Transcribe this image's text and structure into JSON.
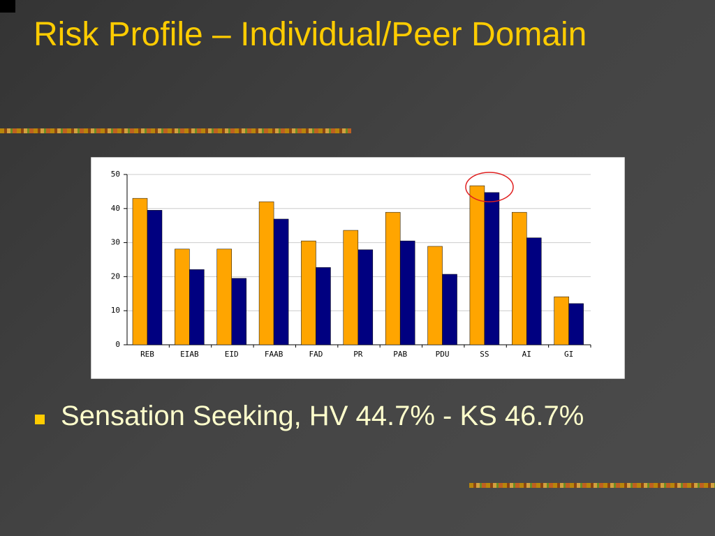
{
  "slide": {
    "title": "Risk Profile – Individual/Peer Domain",
    "bullet": "Sensation Seeking, HV 44.7% - KS 46.7%"
  },
  "chart_data": {
    "type": "bar",
    "categories": [
      "REB",
      "EIAB",
      "EID",
      "FAAB",
      "FAD",
      "PR",
      "PAB",
      "PDU",
      "SS",
      "AI",
      "GI"
    ],
    "series": [
      {
        "color": "#ffa500",
        "values": [
          43.0,
          28.1,
          28.1,
          42.0,
          30.5,
          33.6,
          38.9,
          28.9,
          46.7,
          38.9,
          14.1
        ]
      },
      {
        "color": "#000080",
        "values": [
          39.5,
          22.1,
          19.5,
          36.9,
          22.7,
          27.9,
          30.5,
          20.7,
          44.7,
          31.4,
          12.1
        ]
      }
    ],
    "ylim": [
      0,
      50
    ],
    "yticks": [
      0,
      10,
      20,
      30,
      40,
      50
    ],
    "grid": true
  }
}
